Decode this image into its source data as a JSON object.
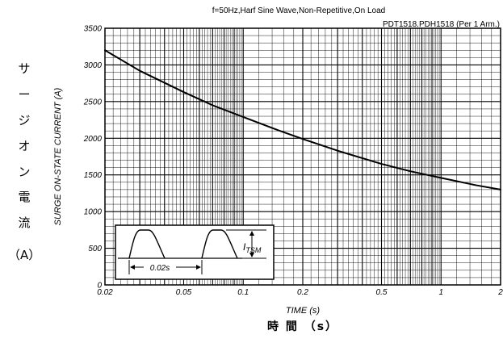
{
  "chart_data": {
    "type": "line",
    "title": "f=50Hz,Harf Sine Wave,Non-Repetitive,On Load",
    "subtitle": "PDT1518.PDH1518 (Per 1 Arm.)",
    "xlabel": "TIME (s)",
    "xlabel_jp": "時 間 （s）",
    "ylabel": "SURGE ON-STATE CURRENT (A)",
    "ylabel_jp": [
      "サ",
      "ー",
      "ジ",
      "オ",
      "ン",
      "電",
      "流",
      "（A）"
    ],
    "xscale": "log",
    "xlim": [
      0.02,
      2
    ],
    "ylim": [
      0,
      3500
    ],
    "grid": true,
    "xticks": [
      {
        "value": 0.02,
        "label": "0.02"
      },
      {
        "value": 0.05,
        "label": "0.05"
      },
      {
        "value": 0.1,
        "label": "0.1"
      },
      {
        "value": 0.2,
        "label": "0.2"
      },
      {
        "value": 0.5,
        "label": "0.5"
      },
      {
        "value": 1,
        "label": "1"
      },
      {
        "value": 2,
        "label": "2"
      }
    ],
    "yticks": [
      {
        "value": 0,
        "label": "0"
      },
      {
        "value": 500,
        "label": "500"
      },
      {
        "value": 1000,
        "label": "1000"
      },
      {
        "value": 1500,
        "label": "1500"
      },
      {
        "value": 2000,
        "label": "2000"
      },
      {
        "value": 2500,
        "label": "2500"
      },
      {
        "value": 3000,
        "label": "3000"
      },
      {
        "value": 3500,
        "label": "3500"
      }
    ],
    "series": [
      {
        "x": [
          0.02,
          0.03,
          0.05,
          0.07,
          0.1,
          0.15,
          0.2,
          0.3,
          0.5,
          0.7,
          1,
          1.5,
          2
        ],
        "y": [
          3200,
          2920,
          2630,
          2450,
          2290,
          2110,
          1990,
          1830,
          1650,
          1550,
          1460,
          1360,
          1300
        ]
      }
    ],
    "inset": {
      "time_label": "0.02s",
      "current_label": "I",
      "current_subscript": "TSM"
    }
  }
}
